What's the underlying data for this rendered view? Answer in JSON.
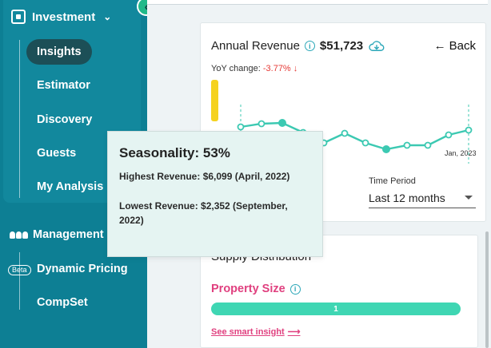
{
  "sidebar": {
    "group_title": "Investment",
    "investment_items": [
      {
        "label": "Insights"
      },
      {
        "label": "Estimator"
      },
      {
        "label": "Discovery"
      },
      {
        "label": "Guests"
      },
      {
        "label": "My Analysis"
      }
    ],
    "management_title": "Management",
    "beta_badge": "Beta",
    "management_items": [
      {
        "label": "Dynamic Pricing"
      },
      {
        "label": "CompSet"
      }
    ]
  },
  "revenue_card": {
    "title": "Annual Revenue",
    "amount": "$51,723",
    "back_label": "Back",
    "yoy_label": "YoY change:",
    "yoy_value": "-3.77% ↓",
    "x_axis_end_label": "Jan, 2023",
    "time_period_label": "Time Period",
    "time_period_value": "Last 12 months"
  },
  "supply_card": {
    "title": "Supply Distribution",
    "property_size_label": "Property Size",
    "bar_value": "1",
    "smart_insight_link": "See smart insight"
  },
  "tooltip": {
    "title": "Seasonality: 53%",
    "highest": "Highest Revenue: $6,099 (April, 2022)",
    "lowest": "Lowest Revenue: $2,352 (September, 2022)"
  },
  "colors": {
    "sidebar_bg": "#0d7f94",
    "active_pill": "#1c4f57",
    "line": "#3cc9b2",
    "accent_pink": "#e0407f",
    "negative_red": "#e53935",
    "yellow_marker": "#f5d21f"
  }
}
